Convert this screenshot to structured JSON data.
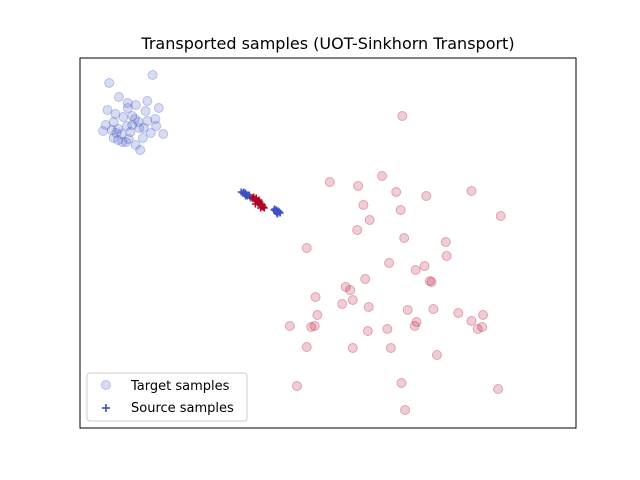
{
  "chart_data": {
    "type": "scatter",
    "title": "Transported samples (UOT-Sinkhorn Transport)",
    "xlabel": "",
    "ylabel": "",
    "xlim": [
      0,
      560
    ],
    "ylim": [
      0,
      370
    ],
    "axis_ticks": "none",
    "grid": false,
    "legend": {
      "placement": "lower-left",
      "entries": [
        "Target samples",
        "Source samples"
      ]
    },
    "colors": {
      "target_blue": "#3d50c3",
      "target_red": "#b40426",
      "source_blue": "#3d50c3",
      "source_red": "#b40426",
      "axes_edge": "#000000"
    },
    "series": [
      {
        "name": "Target samples",
        "marker": "circle",
        "alpha": 0.2,
        "groups": [
          {
            "color": "target_blue",
            "points": [
              [
                33,
                345
              ],
              [
                82,
                353
              ],
              [
                44,
                331
              ],
              [
                31,
                318
              ],
              [
                54,
                320
              ],
              [
                63,
                323
              ],
              [
                49,
                311
              ],
              [
                40,
                314
              ],
              [
                53,
                302
              ],
              [
                62,
                309
              ],
              [
                76,
                307
              ],
              [
                89,
                320
              ],
              [
                54,
                325
              ],
              [
                67,
                300
              ],
              [
                74,
                317
              ],
              [
                85,
                309
              ],
              [
                66,
                306
              ],
              [
                36,
                298
              ],
              [
                47,
                294
              ],
              [
                55,
                289
              ],
              [
                59,
                303
              ],
              [
                72,
                300
              ],
              [
                80,
                295
              ],
              [
                86,
                302
              ],
              [
                94,
                294
              ],
              [
                29,
                303
              ],
              [
                26,
                297
              ],
              [
                38,
                290
              ],
              [
                43,
                299
              ],
              [
                48,
                286
              ],
              [
                63,
                283
              ],
              [
                52,
                286
              ],
              [
                43,
                288
              ],
              [
                68,
                278
              ],
              [
                38,
                306
              ],
              [
                76,
                327
              ],
              [
                59,
                312
              ],
              [
                71,
                290
              ],
              [
                41,
                295
              ],
              [
                57,
                296
              ]
            ]
          },
          {
            "color": "target_red",
            "points": [
              [
                364,
                312
              ],
              [
                341,
                252
              ],
              [
                282,
                246
              ],
              [
                314,
                242
              ],
              [
                320,
                223
              ],
              [
                357,
                236
              ],
              [
                391,
                232
              ],
              [
                442,
                237
              ],
              [
                362,
                218
              ],
              [
                327,
                208
              ],
              [
                313,
                198
              ],
              [
                366,
                190
              ],
              [
                256,
                180
              ],
              [
                413,
                186
              ],
              [
                475,
                212
              ],
              [
                349,
                165
              ],
              [
                379,
                158
              ],
              [
                389,
                162
              ],
              [
                300,
                141
              ],
              [
                266,
                131
              ],
              [
                322,
                149
              ],
              [
                308,
                128
              ],
              [
                305,
                138
              ],
              [
                326,
                121
              ],
              [
                370,
                118
              ],
              [
                395,
                147
              ],
              [
                397,
                146
              ],
              [
                427,
                115
              ],
              [
                414,
                172
              ],
              [
                380,
                106
              ],
              [
                449,
                99
              ],
              [
                455,
                113
              ],
              [
                454,
                101
              ],
              [
                442,
                107
              ],
              [
                325,
                97
              ],
              [
                347,
                99
              ],
              [
                261,
                101
              ],
              [
                237,
                102
              ],
              [
                256,
                81
              ],
              [
                378,
                102
              ],
              [
                351,
                80
              ],
              [
                308,
                80
              ],
              [
                296,
                124
              ],
              [
                268,
                113
              ],
              [
                245,
                42
              ],
              [
                363,
                45
              ],
              [
                367,
                18
              ],
              [
                472,
                39
              ],
              [
                403,
                73
              ],
              [
                265,
                102
              ],
              [
                399,
                119
              ]
            ]
          }
        ]
      },
      {
        "name": "Source samples",
        "marker": "plus",
        "groups": [
          {
            "color": "source_blue",
            "points": [
              [
                182,
                236
              ],
              [
                184,
                235
              ],
              [
                186,
                234
              ],
              [
                187,
                235
              ],
              [
                188,
                233
              ],
              [
                190,
                233
              ],
              [
                189,
                232
              ],
              [
                192,
                231
              ],
              [
                191,
                233
              ],
              [
                193,
                230
              ],
              [
                185,
                236
              ],
              [
                187,
                232
              ],
              [
                219,
                218
              ],
              [
                221,
                217
              ],
              [
                222,
                218
              ],
              [
                223,
                216
              ],
              [
                224,
                217
              ],
              [
                222,
                215
              ],
              [
                225,
                216
              ],
              [
                226,
                215
              ],
              [
                220,
                219
              ],
              [
                223,
                214
              ]
            ]
          },
          {
            "color": "source_red",
            "points": [
              [
                195,
                230
              ],
              [
                197,
                229
              ],
              [
                198,
                227
              ],
              [
                199,
                228
              ],
              [
                200,
                226
              ],
              [
                201,
                227
              ],
              [
                202,
                225
              ],
              [
                203,
                224
              ],
              [
                204,
                223
              ],
              [
                205,
                222
              ],
              [
                206,
                223
              ],
              [
                207,
                221
              ],
              [
                208,
                220
              ],
              [
                196,
                231
              ],
              [
                199,
                230
              ],
              [
                201,
                225
              ],
              [
                203,
                226
              ],
              [
                205,
                224
              ],
              [
                206,
                221
              ],
              [
                204,
                220
              ],
              [
                198,
                224
              ],
              [
                202,
                228
              ]
            ]
          }
        ]
      }
    ]
  }
}
